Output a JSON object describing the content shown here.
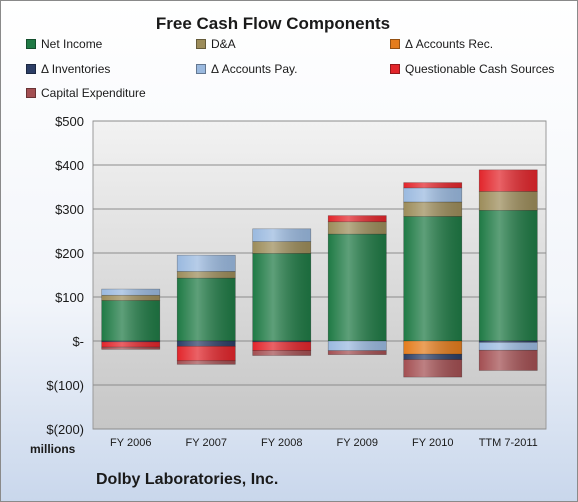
{
  "chart_data": {
    "type": "bar",
    "stacked": true,
    "title": "Free Cash Flow Components",
    "units_label": "millions",
    "footer": "Dolby Laboratories, Inc.",
    "categories": [
      "FY 2006",
      "FY 2007",
      "FY 2008",
      "FY 2009",
      "FY 2010",
      "TTM 7-2011"
    ],
    "ylim": [
      -200,
      500
    ],
    "yticks": [
      500,
      400,
      300,
      200,
      100,
      0,
      -100,
      -200
    ],
    "ytick_labels": [
      "$500",
      "$400",
      "$300",
      "$200",
      "$100",
      "$-",
      "$(100)",
      "$(200)"
    ],
    "grid": true,
    "legend_position": "top",
    "series": [
      {
        "name": "Net Income",
        "color": "#1f7a45",
        "values": [
          92,
          143,
          199,
          243,
          283,
          297
        ]
      },
      {
        "name": "D&A",
        "color": "#9c8c5a",
        "values": [
          12,
          15,
          27,
          28,
          33,
          43
        ]
      },
      {
        "name": "Δ Accounts Rec.",
        "color": "#e47c1c",
        "values": [
          0,
          0,
          0,
          0,
          -30,
          0
        ]
      },
      {
        "name": "Δ Inventories",
        "color": "#2c3e66",
        "values": [
          -2,
          -12,
          -2,
          0,
          -12,
          -3
        ]
      },
      {
        "name": "Δ Accounts Pay.",
        "color": "#9ab9df",
        "values": [
          14,
          37,
          29,
          -22,
          32,
          -18
        ]
      },
      {
        "name": "Questionable Cash Sources",
        "color": "#e2252b",
        "values": [
          -12,
          -33,
          -20,
          14,
          12,
          49
        ]
      },
      {
        "name": "Capital Expenditure",
        "color": "#a34f52",
        "values": [
          -5,
          -8,
          -11,
          -9,
          -40,
          -46
        ]
      }
    ]
  }
}
